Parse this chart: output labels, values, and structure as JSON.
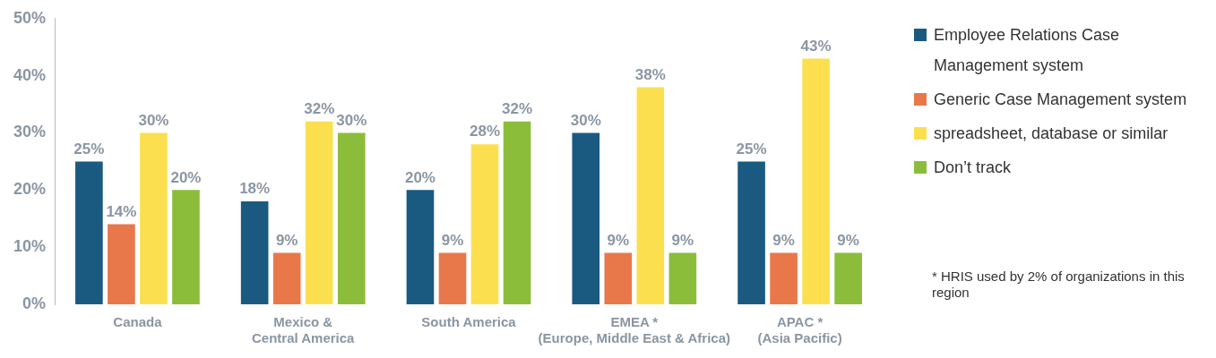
{
  "chart_data": {
    "type": "bar",
    "categories": [
      "Canada",
      "Mexico &\nCentral America",
      "South America",
      "EMEA *\n(Europe, Middle East & Africa)",
      "APAC *\n(Asia Pacific)"
    ],
    "series": [
      {
        "name": "Employee Relations Case Management system",
        "color": "#1b5a80",
        "values": [
          25,
          18,
          20,
          30,
          25
        ],
        "value_labels": [
          "25%",
          "18%",
          "20%",
          "30%",
          "25%"
        ]
      },
      {
        "name": "Generic Case Management system",
        "color": "#e8784a",
        "values": [
          14,
          9,
          9,
          9,
          9
        ],
        "value_labels": [
          "14%",
          "9%",
          "9%",
          "9%",
          "9%"
        ]
      },
      {
        "name": "spreadsheet, database or similar",
        "color": "#fbdf4f",
        "values": [
          30,
          32,
          28,
          38,
          43
        ],
        "value_labels": [
          "30%",
          "32%",
          "28%",
          "38%",
          "43%"
        ]
      },
      {
        "name": "Don’t track",
        "color": "#8bbd3a",
        "values": [
          20,
          30,
          32,
          9,
          9
        ],
        "value_labels": [
          "20%",
          "30%",
          "32%",
          "9%",
          "9%"
        ]
      }
    ],
    "ylim": [
      0,
      50
    ],
    "yticks": [
      {
        "value": 0,
        "label": "0%"
      },
      {
        "value": 10,
        "label": "10%"
      },
      {
        "value": 20,
        "label": "20%"
      },
      {
        "value": 30,
        "label": "30%"
      },
      {
        "value": 40,
        "label": "40%"
      },
      {
        "value": 50,
        "label": "50%"
      }
    ],
    "grid": false,
    "legend": "right",
    "annotations": [
      "* HRIS used by 2% of organizations in this region"
    ]
  }
}
